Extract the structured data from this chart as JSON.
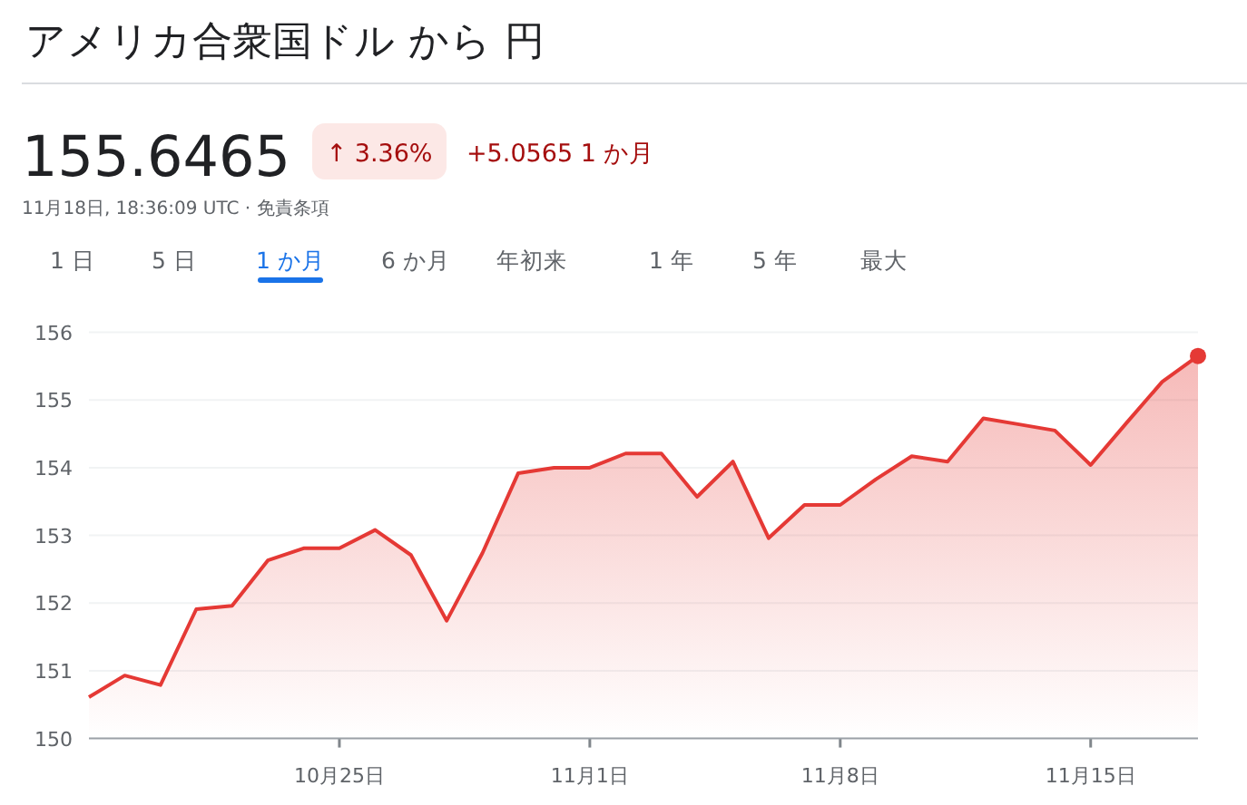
{
  "chart_data": {
    "type": "area",
    "title": "アメリカ合衆国ドル から 円",
    "annotations": [
      "155.6465",
      "↑ 3.36%",
      "+5.0565 1 か月",
      "11月18日, 18:36:09 UTC · 免責条項",
      "1 日",
      "5 日",
      "1 か月",
      "6 か月",
      "年初来",
      "1 年",
      "5 年",
      "最大"
    ],
    "x": [
      "--10-18",
      "--10-19",
      "--10-20",
      "--10-21",
      "--10-22",
      "--10-23",
      "--10-24",
      "--10-25",
      "--10-26",
      "--10-27",
      "--10-28",
      "--10-29",
      "--10-30",
      "--10-31",
      "--11-01",
      "--11-02",
      "--11-03",
      "--11-04",
      "--11-05",
      "--11-06",
      "--11-07",
      "--11-08",
      "--11-09",
      "--11-10",
      "--11-11",
      "--11-12",
      "--11-13",
      "--11-14",
      "--11-15",
      "--11-16",
      "--11-17",
      "--11-18"
    ],
    "values": [
      150.61,
      150.93,
      150.79,
      151.91,
      151.96,
      152.63,
      152.81,
      152.81,
      153.08,
      152.71,
      151.74,
      152.74,
      153.92,
      154.0,
      154.0,
      154.21,
      154.21,
      153.57,
      154.09,
      152.96,
      153.45,
      153.45,
      153.83,
      154.17,
      154.09,
      154.73,
      154.64,
      154.55,
      154.04,
      154.66,
      155.27,
      155.65
    ],
    "color": "#e53935",
    "xlim": [
      "--10-18",
      "--11-18"
    ],
    "xticks": [
      {
        "value": "--10-25",
        "label": "10月25日"
      },
      {
        "value": "--11-01",
        "label": "11月1日"
      },
      {
        "value": "--11-08",
        "label": "11月8日"
      },
      {
        "value": "--11-15",
        "label": "11月15日"
      }
    ],
    "ylim": [
      150,
      156
    ],
    "yticks": [
      150,
      151,
      152,
      153,
      154,
      155,
      156
    ],
    "grid": "y"
  }
}
